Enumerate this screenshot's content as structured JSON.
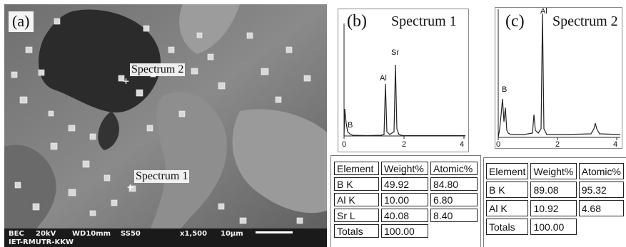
{
  "panel_a": {
    "letter": "(a)",
    "label_spectrum2": "Spectrum 2",
    "label_spectrum1": "Spectrum 1",
    "databar": {
      "mode": "BEC",
      "voltage": "20kV",
      "wd": "WD10mm",
      "ss": "SS50",
      "mag": "x1,500",
      "scale": "10μm",
      "institute": "IET-RMUTR-KKW"
    }
  },
  "panel_b": {
    "letter": "(b)",
    "title": "Spectrum 1",
    "peak_b": "B",
    "peak_al": "Al",
    "peak_sr": "Sr",
    "ticks": [
      "0",
      "2",
      "4"
    ],
    "table": {
      "headers": [
        "Element",
        "Weight%",
        "Atomic%"
      ],
      "rows": [
        [
          "B K",
          "49.92",
          "84.80"
        ],
        [
          "Al K",
          "10.00",
          "6.80"
        ],
        [
          "Sr L",
          "40.08",
          "8.40"
        ]
      ],
      "totals_label": "Totals",
      "totals_value": "100.00"
    }
  },
  "panel_c": {
    "letter": "(c)",
    "title": "Spectrum 2",
    "peak_b": "B",
    "peak_al": "Al",
    "ticks": [
      "0",
      "2",
      "4"
    ],
    "table": {
      "headers": [
        "Element",
        "Weight%",
        "Atomic%"
      ],
      "rows": [
        [
          "B K",
          "89.08",
          "95.32"
        ],
        [
          "Al K",
          "10.92",
          "4.68"
        ]
      ],
      "totals_label": "Totals",
      "totals_value": "100.00"
    }
  }
}
